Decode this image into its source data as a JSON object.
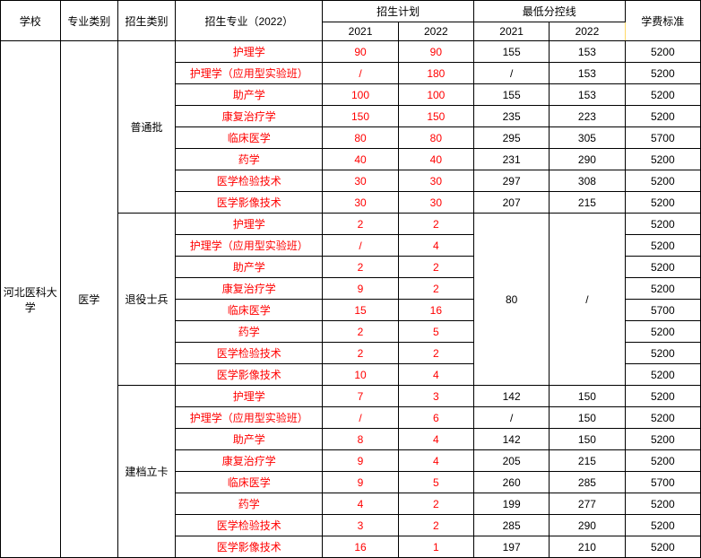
{
  "header": {
    "school": "学校",
    "category": "专业类别",
    "admitType": "招生类别",
    "major": "招生专业（2022）",
    "plan": "招生计划",
    "minScore": "最低分控线",
    "fee": "学费标准",
    "y2021": "2021",
    "y2022": "2022"
  },
  "school": "河北医科大学",
  "category": "医学",
  "groups": [
    {
      "name": "普通批",
      "rows": [
        {
          "major": "护理学",
          "p21": "90",
          "p22": "90",
          "s21": "155",
          "s22": "153",
          "fee": "5200"
        },
        {
          "major": "护理学（应用型实验班）",
          "p21": "/",
          "p22": "180",
          "s21": "/",
          "s22": "153",
          "fee": "5200"
        },
        {
          "major": "助产学",
          "p21": "100",
          "p22": "100",
          "s21": "155",
          "s22": "153",
          "fee": "5200"
        },
        {
          "major": "康复治疗学",
          "p21": "150",
          "p22": "150",
          "s21": "235",
          "s22": "223",
          "fee": "5200"
        },
        {
          "major": "临床医学",
          "p21": "80",
          "p22": "80",
          "s21": "295",
          "s22": "305",
          "fee": "5700"
        },
        {
          "major": "药学",
          "p21": "40",
          "p22": "40",
          "s21": "231",
          "s22": "290",
          "fee": "5200"
        },
        {
          "major": "医学检验技术",
          "p21": "30",
          "p22": "30",
          "s21": "297",
          "s22": "308",
          "fee": "5200"
        },
        {
          "major": "医学影像技术",
          "p21": "30",
          "p22": "30",
          "s21": "207",
          "s22": "215",
          "fee": "5200"
        }
      ]
    },
    {
      "name": "退役士兵",
      "mergedScore21": "80",
      "mergedScore22": "/",
      "rows": [
        {
          "major": "护理学",
          "p21": "2",
          "p22": "2",
          "fee": "5200"
        },
        {
          "major": "护理学（应用型实验班）",
          "p21": "/",
          "p22": "4",
          "fee": "5200"
        },
        {
          "major": "助产学",
          "p21": "2",
          "p22": "2",
          "fee": "5200"
        },
        {
          "major": "康复治疗学",
          "p21": "9",
          "p22": "2",
          "fee": "5200"
        },
        {
          "major": "临床医学",
          "p21": "15",
          "p22": "16",
          "fee": "5700"
        },
        {
          "major": "药学",
          "p21": "2",
          "p22": "5",
          "fee": "5200"
        },
        {
          "major": "医学检验技术",
          "p21": "2",
          "p22": "2",
          "fee": "5200"
        },
        {
          "major": "医学影像技术",
          "p21": "10",
          "p22": "4",
          "fee": "5200"
        }
      ]
    },
    {
      "name": "建档立卡",
      "rows": [
        {
          "major": "护理学",
          "p21": "7",
          "p22": "3",
          "s21": "142",
          "s22": "150",
          "fee": "5200"
        },
        {
          "major": "护理学（应用型实验班）",
          "p21": "/",
          "p22": "6",
          "s21": "/",
          "s22": "150",
          "fee": "5200"
        },
        {
          "major": "助产学",
          "p21": "8",
          "p22": "4",
          "s21": "142",
          "s22": "150",
          "fee": "5200"
        },
        {
          "major": "康复治疗学",
          "p21": "9",
          "p22": "4",
          "s21": "205",
          "s22": "215",
          "fee": "5200"
        },
        {
          "major": "临床医学",
          "p21": "9",
          "p22": "5",
          "s21": "260",
          "s22": "285",
          "fee": "5700"
        },
        {
          "major": "药学",
          "p21": "4",
          "p22": "2",
          "s21": "199",
          "s22": "277",
          "fee": "5200"
        },
        {
          "major": "医学检验技术",
          "p21": "3",
          "p22": "2",
          "s21": "285",
          "s22": "290",
          "fee": "5200"
        },
        {
          "major": "医学影像技术",
          "p21": "16",
          "p22": "1",
          "s21": "197",
          "s22": "210",
          "fee": "5200"
        }
      ]
    }
  ]
}
